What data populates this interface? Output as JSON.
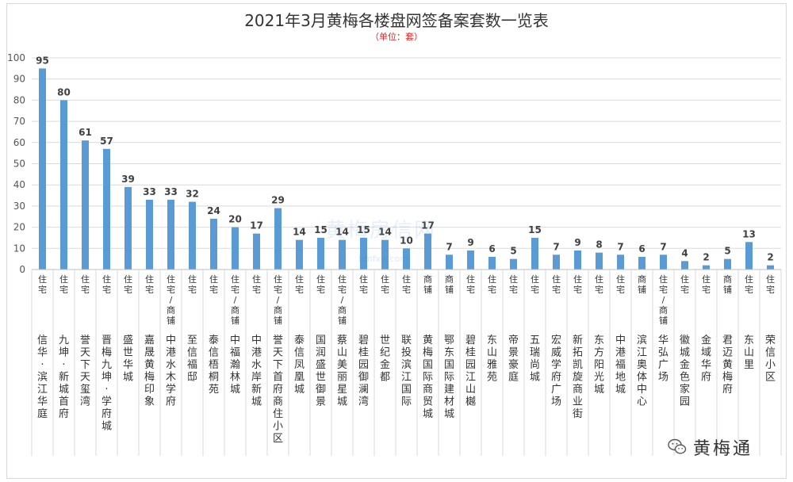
{
  "chart_data": {
    "type": "bar",
    "title": "2021年3月黄梅各楼盘网签备案套数一览表",
    "subtitle": "（单位：套）",
    "categories": [
      "信华·滨江华庭",
      "九坤·新城首府",
      "誉天下天玺湾",
      "晋梅九坤·学府城",
      "盛世华城",
      "嘉晟黄梅印象",
      "中港水木学府",
      "至信福邸",
      "泰信梧桐苑",
      "中福瀚林城",
      "中港水岸新城",
      "誉天下首府商住小区",
      "泰信凤凰城",
      "国润盛世御景",
      "蔡山美丽星城",
      "碧桂园御澜湾",
      "世纪金都",
      "联投滨江国际",
      "黄梅国际商贸城",
      "鄂东国际建材城",
      "碧桂园江山樾",
      "东山雅苑",
      "帝景豪庭",
      "五瑞尚城",
      "宏威学府广场",
      "新拓凯旋商业街",
      "东方阳光城",
      "中港福地城",
      "滨江奥体中心",
      "华弘广场",
      "徽城金色家园",
      "金域华府",
      "君迈黄梅府",
      "东山里",
      "荣信小区"
    ],
    "types": [
      "住宅",
      "住宅",
      "住宅",
      "住宅",
      "住宅",
      "住宅",
      "住宅/商铺",
      "住宅",
      "住宅",
      "住宅/商铺",
      "住宅",
      "住宅/商铺",
      "住宅",
      "住宅",
      "住宅/商铺",
      "住宅",
      "住宅",
      "住宅",
      "商铺",
      "商铺",
      "住宅",
      "住宅",
      "住宅",
      "住宅",
      "住宅",
      "住宅",
      "住宅",
      "住宅",
      "商铺",
      "住宅/商铺",
      "住宅",
      "住宅",
      "商铺",
      "住宅",
      "住宅"
    ],
    "values": [
      95,
      80,
      61,
      57,
      39,
      33,
      33,
      32,
      24,
      20,
      17,
      29,
      14,
      15,
      14,
      15,
      14,
      10,
      17,
      7,
      9,
      6,
      5,
      15,
      7,
      9,
      8,
      7,
      6,
      7,
      4,
      2,
      5,
      13,
      2
    ],
    "ylim": [
      0,
      100
    ],
    "yticks": [
      0,
      10,
      20,
      30,
      40,
      50,
      60,
      70,
      80,
      90,
      100
    ],
    "grid": true,
    "bar_color": "#5b9bd5"
  },
  "watermark": "黄梅房信网",
  "watermark_url": "hmfxw.com",
  "brand": "黄梅通",
  "brand_icon": "wechat-icon"
}
